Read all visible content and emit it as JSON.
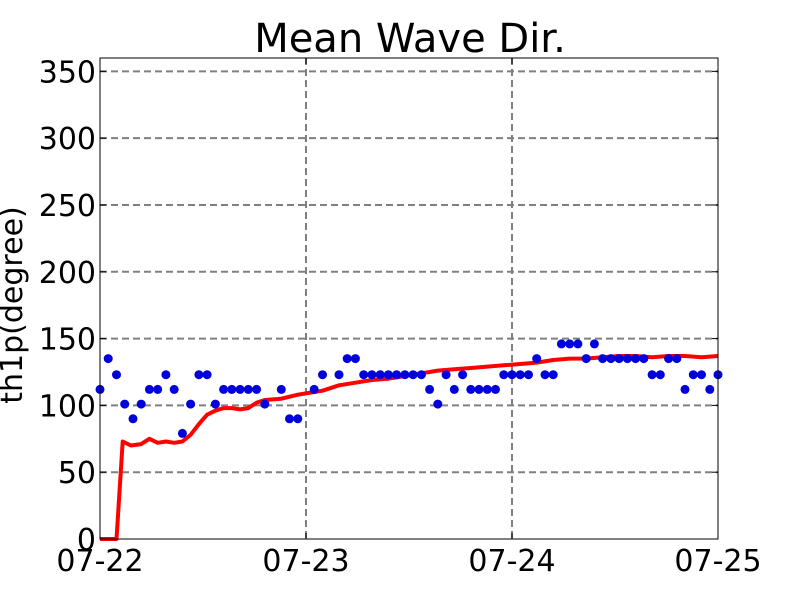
{
  "chart_data": {
    "type": "scatter+line",
    "title": "Mean Wave Dir.",
    "xlabel": "",
    "ylabel": "th1p(degree)",
    "x_tick_labels": [
      "07-22",
      "07-23",
      "07-24",
      "07-25"
    ],
    "xlim_days": [
      0,
      3
    ],
    "ylim": [
      0,
      360
    ],
    "y_ticks": [
      0,
      50,
      100,
      150,
      200,
      250,
      300,
      350
    ],
    "grid": true,
    "grid_style": "dashed",
    "colors": {
      "points": "#0000dd",
      "line": "#ff0000",
      "grid": "#808080"
    },
    "series": [
      {
        "kind": "scatter",
        "points": [
          [
            0.0,
            112
          ],
          [
            0.04,
            135
          ],
          [
            0.08,
            123
          ],
          [
            0.12,
            101
          ],
          [
            0.16,
            90
          ],
          [
            0.2,
            101
          ],
          [
            0.24,
            112
          ],
          [
            0.28,
            112
          ],
          [
            0.32,
            123
          ],
          [
            0.36,
            112
          ],
          [
            0.4,
            79
          ],
          [
            0.44,
            101
          ],
          [
            0.48,
            123
          ],
          [
            0.52,
            123
          ],
          [
            0.56,
            101
          ],
          [
            0.6,
            112
          ],
          [
            0.64,
            112
          ],
          [
            0.68,
            112
          ],
          [
            0.72,
            112
          ],
          [
            0.76,
            112
          ],
          [
            0.8,
            101
          ],
          [
            0.88,
            112
          ],
          [
            0.92,
            90
          ],
          [
            0.96,
            90
          ],
          [
            1.04,
            112
          ],
          [
            1.08,
            123
          ],
          [
            1.16,
            123
          ],
          [
            1.2,
            135
          ],
          [
            1.24,
            135
          ],
          [
            1.28,
            123
          ],
          [
            1.32,
            123
          ],
          [
            1.36,
            123
          ],
          [
            1.4,
            123
          ],
          [
            1.44,
            123
          ],
          [
            1.48,
            123
          ],
          [
            1.52,
            123
          ],
          [
            1.56,
            123
          ],
          [
            1.6,
            112
          ],
          [
            1.64,
            101
          ],
          [
            1.68,
            123
          ],
          [
            1.72,
            112
          ],
          [
            1.76,
            123
          ],
          [
            1.8,
            112
          ],
          [
            1.84,
            112
          ],
          [
            1.88,
            112
          ],
          [
            1.92,
            112
          ],
          [
            1.96,
            123
          ],
          [
            2.0,
            123
          ],
          [
            2.04,
            123
          ],
          [
            2.08,
            123
          ],
          [
            2.12,
            135
          ],
          [
            2.16,
            123
          ],
          [
            2.2,
            123
          ],
          [
            2.24,
            146
          ],
          [
            2.28,
            146
          ],
          [
            2.32,
            146
          ],
          [
            2.36,
            135
          ],
          [
            2.4,
            146
          ],
          [
            2.44,
            135
          ],
          [
            2.48,
            135
          ],
          [
            2.52,
            135
          ],
          [
            2.56,
            135
          ],
          [
            2.6,
            135
          ],
          [
            2.64,
            135
          ],
          [
            2.68,
            123
          ],
          [
            2.72,
            123
          ],
          [
            2.76,
            135
          ],
          [
            2.8,
            135
          ],
          [
            2.84,
            112
          ],
          [
            2.88,
            123
          ],
          [
            2.92,
            123
          ],
          [
            2.96,
            112
          ],
          [
            3.0,
            123
          ]
        ]
      },
      {
        "kind": "line",
        "points": [
          [
            0.0,
            0
          ],
          [
            0.08,
            0
          ],
          [
            0.11,
            73
          ],
          [
            0.15,
            70
          ],
          [
            0.2,
            71
          ],
          [
            0.24,
            75
          ],
          [
            0.28,
            72
          ],
          [
            0.32,
            73
          ],
          [
            0.36,
            72
          ],
          [
            0.4,
            73
          ],
          [
            0.44,
            78
          ],
          [
            0.48,
            86
          ],
          [
            0.52,
            93
          ],
          [
            0.56,
            96
          ],
          [
            0.6,
            98
          ],
          [
            0.64,
            98
          ],
          [
            0.68,
            97
          ],
          [
            0.72,
            98
          ],
          [
            0.76,
            102
          ],
          [
            0.8,
            104
          ],
          [
            0.88,
            105
          ],
          [
            0.96,
            108
          ],
          [
            1.0,
            109
          ],
          [
            1.08,
            111
          ],
          [
            1.16,
            115
          ],
          [
            1.24,
            117
          ],
          [
            1.32,
            119
          ],
          [
            1.4,
            120
          ],
          [
            1.48,
            122
          ],
          [
            1.56,
            124
          ],
          [
            1.64,
            126
          ],
          [
            1.72,
            127
          ],
          [
            1.8,
            128
          ],
          [
            1.88,
            129
          ],
          [
            1.96,
            130
          ],
          [
            2.04,
            131
          ],
          [
            2.12,
            132
          ],
          [
            2.2,
            134
          ],
          [
            2.28,
            135
          ],
          [
            2.36,
            135
          ],
          [
            2.44,
            136
          ],
          [
            2.52,
            137
          ],
          [
            2.6,
            137
          ],
          [
            2.68,
            136
          ],
          [
            2.76,
            137
          ],
          [
            2.84,
            137
          ],
          [
            2.92,
            136
          ],
          [
            3.0,
            137
          ]
        ]
      }
    ]
  }
}
